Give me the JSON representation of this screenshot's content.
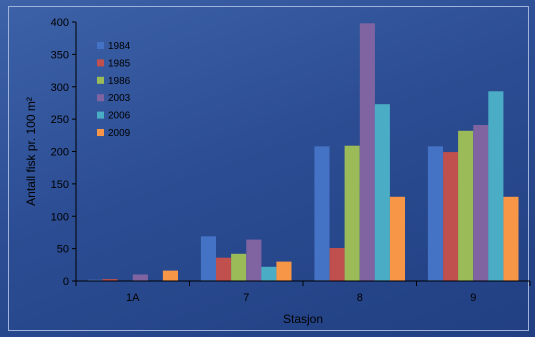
{
  "chart_data": {
    "type": "bar",
    "categories": [
      "1A",
      "7",
      "8",
      "9"
    ],
    "series": [
      {
        "name": "1984",
        "color": "#4472c4",
        "values": [
          2,
          69,
          208,
          208
        ]
      },
      {
        "name": "1985",
        "color": "#c0504d",
        "values": [
          3,
          36,
          51,
          199
        ]
      },
      {
        "name": "1986",
        "color": "#9bbb59",
        "values": [
          0,
          42,
          209,
          232
        ]
      },
      {
        "name": "2003",
        "color": "#8064a2",
        "values": [
          10,
          64,
          398,
          241
        ]
      },
      {
        "name": "2006",
        "color": "#4bacc6",
        "values": [
          0,
          22,
          273,
          293
        ]
      },
      {
        "name": "2009",
        "color": "#f79646",
        "values": [
          16,
          30,
          130,
          130
        ]
      }
    ],
    "xlabel": "Stasjon",
    "ylabel": "Antall fisk pr. 100 m²",
    "ylim": [
      0,
      400
    ],
    "yticks": [
      0,
      50,
      100,
      150,
      200,
      250,
      300,
      350,
      400
    ],
    "legend_position": "top-left",
    "grid": false
  }
}
